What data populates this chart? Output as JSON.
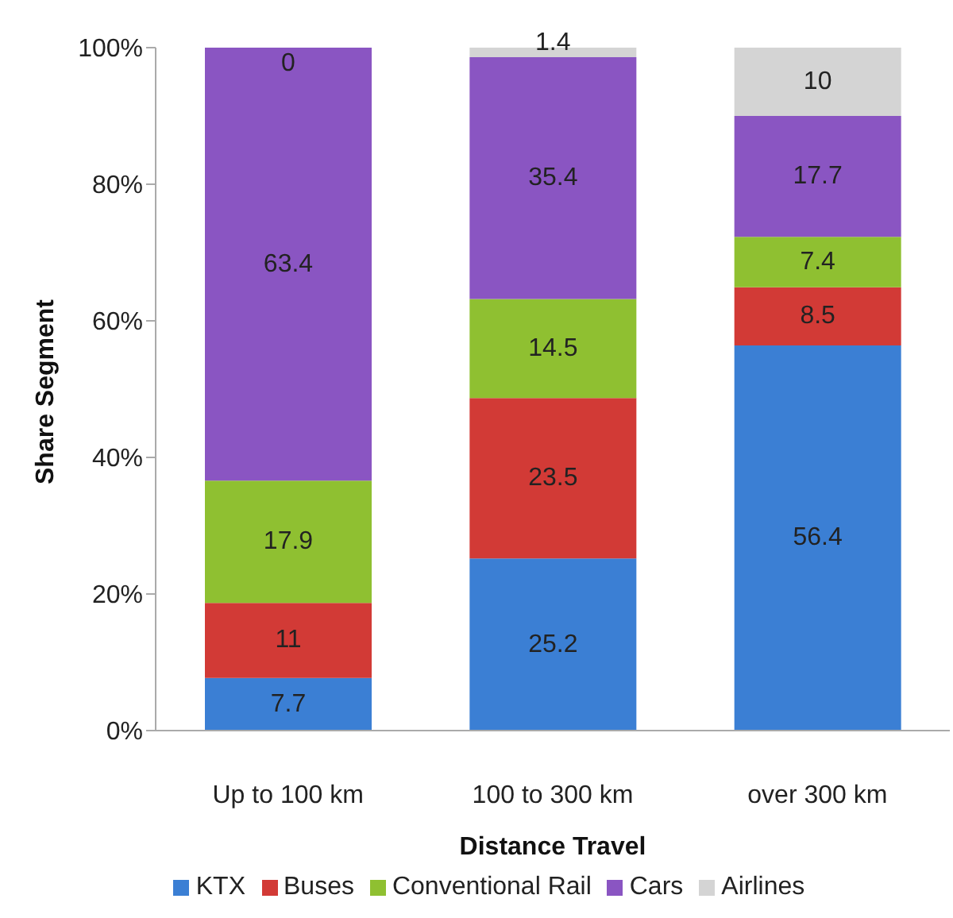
{
  "chart_data": {
    "type": "bar",
    "stacked": true,
    "xlabel": "Distance Travel",
    "ylabel": "Share Segment",
    "categories": [
      "Up to 100 km",
      "100 to 300 km",
      "over 300 km"
    ],
    "series": [
      {
        "name": "KTX",
        "color": "#3b7fd4",
        "values": [
          7.7,
          25.2,
          56.4
        ]
      },
      {
        "name": "Buses",
        "color": "#d23a36",
        "values": [
          11,
          23.5,
          8.5
        ]
      },
      {
        "name": "Conventional Rail",
        "color": "#8fc031",
        "values": [
          17.9,
          14.5,
          7.4
        ]
      },
      {
        "name": "Cars",
        "color": "#8a55c2",
        "values": [
          63.4,
          35.4,
          17.7
        ]
      },
      {
        "name": "Airlines",
        "color": "#d4d4d4",
        "values": [
          0,
          1.4,
          10
        ]
      }
    ],
    "ylim": [
      0,
      100
    ],
    "yticks": [
      {
        "value": 0,
        "label": "0%"
      },
      {
        "value": 20,
        "label": "20%"
      },
      {
        "value": 40,
        "label": "40%"
      },
      {
        "value": 60,
        "label": "60%"
      },
      {
        "value": 80,
        "label": "80%"
      },
      {
        "value": 100,
        "label": "100%"
      }
    ],
    "data_labels": true,
    "legend": "bottom",
    "grid": false
  }
}
